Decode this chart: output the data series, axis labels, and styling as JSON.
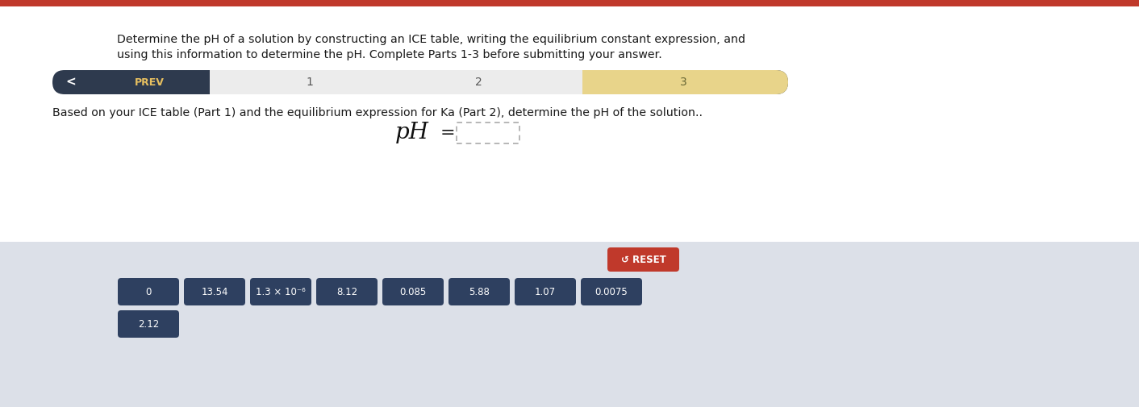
{
  "title_line1": "Determine the pH of a solution by constructing an ICE table, writing the equilibrium constant expression, and",
  "title_line2": "using this information to determine the pH. Complete Parts 1-3 before submitting your answer.",
  "body_text": "Based on your ICE table (Part 1) and the equilibrium expression for Ka (Part 2), determine the pH of the solution..",
  "nav_bg_color": "#2e3a4e",
  "nav_section12_color": "#ececec",
  "nav_section3_color": "#e8d48a",
  "nav_prev_color": "#e8c060",
  "top_bar_color": "#c0392b",
  "button_labels": [
    "0",
    "13.54",
    "1.3 × 10⁻⁶",
    "8.12",
    "0.085",
    "5.88",
    "1.07",
    "0.0075"
  ],
  "button_label_row2": [
    "2.12"
  ],
  "button_bg_color": "#2e4060",
  "button_text_color": "#ffffff",
  "reset_button_color": "#c0392b",
  "reset_button_text": "↺ RESET",
  "lower_panel_color": "#dce0e8",
  "background_color": "#ffffff"
}
